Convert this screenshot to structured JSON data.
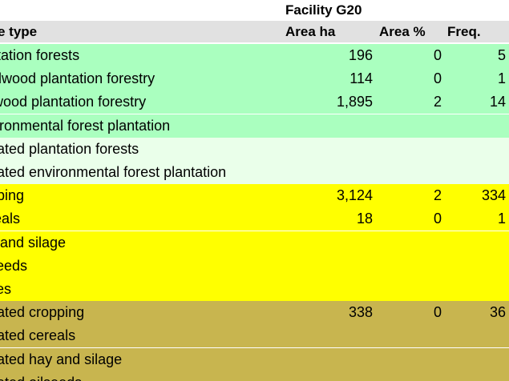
{
  "header": {
    "facility": "Facility G20",
    "col_type": "e type",
    "col_area": "Area ha",
    "col_pct": "Area %",
    "col_freq": "Freq."
  },
  "colors": {
    "header_bg": "#e1e1e1",
    "plantation": "#aaffbf",
    "irrigated_plantation": "#eaffea",
    "cropping": "#ffff00",
    "irrigated_cropping": "#c8b54f"
  },
  "rows": [
    {
      "name": "ntation forests",
      "area": "196",
      "pct": "0",
      "freq": "5",
      "group": "plantation"
    },
    {
      "name": "rdwood plantation forestry",
      "area": "114",
      "pct": "0",
      "freq": "1",
      "group": "plantation"
    },
    {
      "name": "twood plantation forestry",
      "area": "1,895",
      "pct": "2",
      "freq": "14",
      "group": "plantation"
    },
    {
      "name": "vironmental forest plantation",
      "area": "",
      "pct": "",
      "freq": "",
      "group": "plantation"
    },
    {
      "name": "gated plantation forests",
      "area": "",
      "pct": "",
      "freq": "",
      "group": "irrigated_plantation"
    },
    {
      "name": "gated environmental forest plantation",
      "area": "",
      "pct": "",
      "freq": "",
      "group": "irrigated_plantation"
    },
    {
      "name": "pping",
      "area": "3,124",
      "pct": "2",
      "freq": "334",
      "group": "cropping"
    },
    {
      "name": "reals",
      "area": "18",
      "pct": "0",
      "freq": "1",
      "group": "cropping"
    },
    {
      "name": "y and silage",
      "area": "",
      "pct": "",
      "freq": "",
      "group": "cropping"
    },
    {
      "name": "seeds",
      "area": "",
      "pct": "",
      "freq": "",
      "group": "cropping"
    },
    {
      "name": "ses",
      "area": "",
      "pct": "",
      "freq": "",
      "group": "cropping"
    },
    {
      "name": "gated cropping",
      "area": "338",
      "pct": "0",
      "freq": "36",
      "group": "irrigated_cropping"
    },
    {
      "name": "gated cereals",
      "area": "",
      "pct": "",
      "freq": "",
      "group": "irrigated_cropping"
    },
    {
      "name": "gated hay and silage",
      "area": "",
      "pct": "",
      "freq": "",
      "group": "irrigated_cropping"
    },
    {
      "name": "gated oilseeds",
      "area": "",
      "pct": "",
      "freq": "",
      "group": "irrigated_cropping"
    }
  ]
}
